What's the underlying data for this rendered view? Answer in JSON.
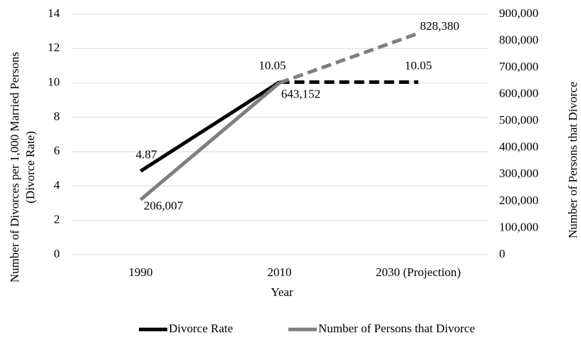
{
  "chart_data": {
    "type": "line",
    "x_label": "Year",
    "y_label": [
      "Number of Divorces per 1,000 Married Persons",
      "(Divorce Rate)"
    ],
    "y2_label": "Number of Persons that Divorce",
    "categories": [
      "1990",
      "2010",
      "2030 (Projection)"
    ],
    "series": [
      {
        "name": "Divorce Rate",
        "color": "#000000",
        "values": [
          4.87,
          10.05,
          10.05
        ],
        "segment_styles": [
          "solid",
          "dashed"
        ]
      },
      {
        "name": "Number of Persons that Divorce",
        "color": "#7f7f7f",
        "axis": "y2",
        "values": [
          206007,
          643152,
          828380
        ],
        "value_labels": [
          "206,007",
          "643,152",
          "828,380"
        ],
        "segment_styles": [
          "solid",
          "dashed"
        ]
      }
    ],
    "ylim": [
      0,
      14
    ],
    "yticks": [
      0,
      2,
      4,
      6,
      8,
      10,
      12,
      14
    ],
    "y2lim": [
      0,
      900000
    ],
    "y2ticks": [
      0,
      {
        "value": 100000,
        "label": "100,000"
      },
      {
        "value": 200000,
        "label": "200,000"
      },
      {
        "value": 300000,
        "label": "300,000"
      },
      {
        "value": 400000,
        "label": "400,000"
      },
      {
        "value": 500000,
        "label": "500,000"
      },
      {
        "value": 600000,
        "label": "600,000"
      },
      {
        "value": 700000,
        "label": "700,000"
      },
      {
        "value": 800000,
        "label": "800,000"
      },
      {
        "value": 900000,
        "label": "900,000"
      }
    ],
    "grid": true,
    "legend": "bottom"
  }
}
